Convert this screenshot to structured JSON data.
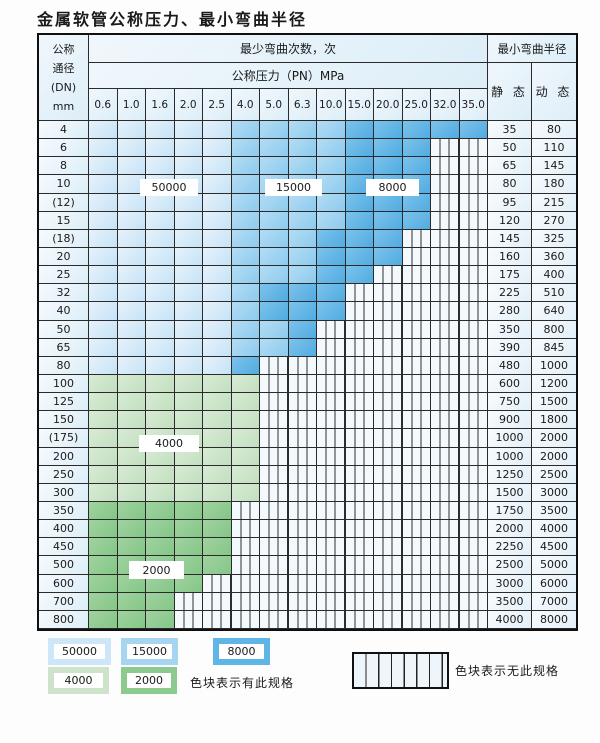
{
  "title": "金属软管公称压力、最小弯曲半径",
  "table": {
    "corner_lines": [
      "公称",
      "通径",
      "(DN)",
      "mm"
    ],
    "bend_cycles_header": "最少弯曲次数，次",
    "pressure_header": "公称压力（PN）MPa",
    "radius_header": "最小弯曲半径",
    "static_label": "静 态",
    "dynamic_label": "动 态",
    "pressures": [
      "0.6",
      "1.0",
      "1.6",
      "2.0",
      "2.5",
      "4.0",
      "5.0",
      "6.3",
      "10.0",
      "15.0",
      "20.0",
      "25.0",
      "32.0",
      "35.0"
    ],
    "rows": [
      {
        "dn": "4",
        "static": "35",
        "dynamic": "80",
        "bands": [
          [
            "pale",
            0,
            4
          ],
          [
            "mid",
            5,
            8
          ],
          [
            "dark",
            9,
            13
          ]
        ]
      },
      {
        "dn": "6",
        "static": "50",
        "dynamic": "110",
        "bands": [
          [
            "pale",
            0,
            4
          ],
          [
            "mid",
            5,
            8
          ],
          [
            "dark",
            9,
            11
          ]
        ]
      },
      {
        "dn": "8",
        "static": "65",
        "dynamic": "145",
        "bands": [
          [
            "pale",
            0,
            4
          ],
          [
            "mid",
            5,
            8
          ],
          [
            "dark",
            9,
            11
          ]
        ]
      },
      {
        "dn": "10",
        "static": "80",
        "dynamic": "180",
        "bands": [
          [
            "pale",
            0,
            4
          ],
          [
            "mid",
            5,
            8
          ],
          [
            "dark",
            9,
            11
          ]
        ]
      },
      {
        "dn": "(12)",
        "static": "95",
        "dynamic": "215",
        "bands": [
          [
            "pale",
            0,
            4
          ],
          [
            "mid",
            5,
            8
          ],
          [
            "dark",
            9,
            11
          ]
        ]
      },
      {
        "dn": "15",
        "static": "120",
        "dynamic": "270",
        "bands": [
          [
            "pale",
            0,
            4
          ],
          [
            "mid",
            5,
            8
          ],
          [
            "dark",
            9,
            11
          ]
        ]
      },
      {
        "dn": "(18)",
        "static": "145",
        "dynamic": "325",
        "bands": [
          [
            "pale",
            0,
            4
          ],
          [
            "mid",
            5,
            7
          ],
          [
            "dark",
            8,
            10
          ]
        ]
      },
      {
        "dn": "20",
        "static": "160",
        "dynamic": "360",
        "bands": [
          [
            "pale",
            0,
            4
          ],
          [
            "mid",
            5,
            7
          ],
          [
            "dark",
            8,
            10
          ]
        ]
      },
      {
        "dn": "25",
        "static": "175",
        "dynamic": "400",
        "bands": [
          [
            "pale",
            0,
            4
          ],
          [
            "mid",
            5,
            7
          ],
          [
            "dark",
            8,
            9
          ]
        ]
      },
      {
        "dn": "32",
        "static": "225",
        "dynamic": "510",
        "bands": [
          [
            "pale",
            0,
            4
          ],
          [
            "mid",
            5,
            5
          ],
          [
            "dark",
            6,
            8
          ]
        ]
      },
      {
        "dn": "40",
        "static": "280",
        "dynamic": "640",
        "bands": [
          [
            "pale",
            0,
            4
          ],
          [
            "mid",
            5,
            5
          ],
          [
            "dark",
            6,
            8
          ]
        ]
      },
      {
        "dn": "50",
        "static": "350",
        "dynamic": "800",
        "bands": [
          [
            "pale",
            0,
            4
          ],
          [
            "mid",
            5,
            6
          ],
          [
            "dark",
            7,
            7
          ]
        ]
      },
      {
        "dn": "65",
        "static": "390",
        "dynamic": "845",
        "bands": [
          [
            "pale",
            0,
            4
          ],
          [
            "mid",
            5,
            6
          ],
          [
            "dark",
            7,
            7
          ]
        ]
      },
      {
        "dn": "80",
        "static": "480",
        "dynamic": "1000",
        "bands": [
          [
            "pale",
            0,
            4
          ],
          [
            "dark",
            5,
            5
          ]
        ]
      },
      {
        "dn": "100",
        "static": "600",
        "dynamic": "1200",
        "bands": [
          [
            "gpale",
            0,
            5
          ]
        ]
      },
      {
        "dn": "125",
        "static": "750",
        "dynamic": "1500",
        "bands": [
          [
            "gpale",
            0,
            5
          ]
        ]
      },
      {
        "dn": "150",
        "static": "900",
        "dynamic": "1800",
        "bands": [
          [
            "gpale",
            0,
            5
          ]
        ]
      },
      {
        "dn": "(175)",
        "static": "1000",
        "dynamic": "2000",
        "bands": [
          [
            "gpale",
            0,
            5
          ]
        ]
      },
      {
        "dn": "200",
        "static": "1000",
        "dynamic": "2000",
        "bands": [
          [
            "gpale",
            0,
            5
          ]
        ]
      },
      {
        "dn": "250",
        "static": "1250",
        "dynamic": "2500",
        "bands": [
          [
            "gpale",
            0,
            5
          ]
        ]
      },
      {
        "dn": "300",
        "static": "1500",
        "dynamic": "3000",
        "bands": [
          [
            "gpale",
            0,
            5
          ]
        ]
      },
      {
        "dn": "350",
        "static": "1750",
        "dynamic": "3500",
        "bands": [
          [
            "gmid",
            0,
            4
          ]
        ]
      },
      {
        "dn": "400",
        "static": "2000",
        "dynamic": "4000",
        "bands": [
          [
            "gmid",
            0,
            4
          ]
        ]
      },
      {
        "dn": "450",
        "static": "2250",
        "dynamic": "4500",
        "bands": [
          [
            "gmid",
            0,
            4
          ]
        ]
      },
      {
        "dn": "500",
        "static": "2500",
        "dynamic": "5000",
        "bands": [
          [
            "gmid",
            0,
            4
          ]
        ]
      },
      {
        "dn": "600",
        "static": "3000",
        "dynamic": "6000",
        "bands": [
          [
            "gmid",
            0,
            3
          ]
        ]
      },
      {
        "dn": "700",
        "static": "3500",
        "dynamic": "7000",
        "bands": [
          [
            "gmid",
            0,
            2
          ]
        ]
      },
      {
        "dn": "800",
        "static": "4000",
        "dynamic": "8000",
        "bands": [
          [
            "gmid",
            0,
            2
          ]
        ]
      }
    ]
  },
  "overlays": {
    "cycles_50000": "50000",
    "cycles_15000": "15000",
    "cycles_8000": "8000",
    "cycles_4000": "4000",
    "cycles_2000": "2000"
  },
  "legend": {
    "items": [
      {
        "label": "50000",
        "color": "#cde7f8"
      },
      {
        "label": "15000",
        "color": "#a5d5f1"
      },
      {
        "label": "8000",
        "color": "#5fb5e6"
      },
      {
        "label": "4000",
        "color": "#cde4ca"
      },
      {
        "label": "2000",
        "color": "#8cca8d"
      }
    ],
    "has_spec_text": "色块表示有此规格",
    "no_spec_text": "色块表示无此规格"
  },
  "colors": {
    "band_pale_blue": "#c6e3f6",
    "band_mid_blue": "#8ccbee",
    "band_dark_blue": "#51abe1",
    "band_pale_green": "#c2dfbf",
    "band_mid_green": "#84c687",
    "grid_line": "#2b2b2b"
  }
}
